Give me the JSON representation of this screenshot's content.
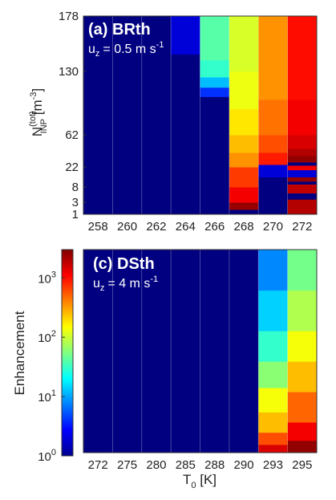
{
  "chart_data": [
    {
      "type": "heatmap",
      "panel_label": "(a) BRth",
      "annotation": {
        "prefix": "u",
        "sub": "z",
        "value": "= 0.5 m s",
        "sup": "-1"
      },
      "xlabel": "",
      "ylabel": {
        "main": "N",
        "sup": "(tot)",
        "sub": "INP",
        "unit": " [m",
        "unit_sup": "-3",
        "unit_close": "]"
      },
      "x_categories": [
        "258",
        "260",
        "262",
        "264",
        "266",
        "268",
        "270",
        "272"
      ],
      "y_ticks": [
        1,
        3,
        8,
        22,
        62,
        130,
        178
      ],
      "y_tick_labels": [
        "1",
        "3",
        "8",
        "22",
        "62",
        "130",
        "178"
      ],
      "ylim": [
        1,
        178
      ],
      "columns": [
        {
          "x": "258",
          "segments": [
            {
              "y0": 1,
              "y1": 178,
              "v": 1
            }
          ]
        },
        {
          "x": "260",
          "segments": [
            {
              "y0": 1,
              "y1": 178,
              "v": 1
            }
          ]
        },
        {
          "x": "262",
          "segments": [
            {
              "y0": 1,
              "y1": 178,
              "v": 1
            }
          ]
        },
        {
          "x": "264",
          "segments": [
            {
              "y0": 1,
              "y1": 145,
              "v": 1
            },
            {
              "y0": 145,
              "y1": 178,
              "v": 2
            }
          ]
        },
        {
          "x": "266",
          "segments": [
            {
              "y0": 1,
              "y1": 103,
              "v": 1
            },
            {
              "y0": 103,
              "y1": 113,
              "v": 4
            },
            {
              "y0": 113,
              "y1": 124,
              "v": 12
            },
            {
              "y0": 124,
              "y1": 140,
              "v": 30
            },
            {
              "y0": 140,
              "y1": 178,
              "v": 40
            }
          ]
        },
        {
          "x": "268",
          "segments": [
            {
              "y0": 1,
              "y1": 1.8,
              "v": 1
            },
            {
              "y0": 1.8,
              "y1": 3,
              "v": 2500
            },
            {
              "y0": 3,
              "y1": 8,
              "v": 1200
            },
            {
              "y0": 8,
              "y1": 22,
              "v": 700
            },
            {
              "y0": 22,
              "y1": 40,
              "v": 350
            },
            {
              "y0": 40,
              "y1": 62,
              "v": 250
            },
            {
              "y0": 62,
              "y1": 90,
              "v": 180
            },
            {
              "y0": 90,
              "y1": 130,
              "v": 130
            },
            {
              "y0": 130,
              "y1": 178,
              "v": 110
            }
          ]
        },
        {
          "x": "270",
          "segments": [
            {
              "y0": 1,
              "y1": 15,
              "v": 1
            },
            {
              "y0": 15,
              "y1": 25,
              "v": 2
            },
            {
              "y0": 25,
              "y1": 40,
              "v": 900
            },
            {
              "y0": 40,
              "y1": 62,
              "v": 600
            },
            {
              "y0": 62,
              "y1": 100,
              "v": 450
            },
            {
              "y0": 100,
              "y1": 178,
              "v": 350
            }
          ]
        },
        {
          "x": "272",
          "segments": [
            {
              "y0": 1,
              "y1": 4,
              "v": 2000
            },
            {
              "y0": 4,
              "y1": 6,
              "v": 1
            },
            {
              "y0": 6,
              "y1": 10,
              "v": 1800
            },
            {
              "y0": 10,
              "y1": 12,
              "v": 1
            },
            {
              "y0": 12,
              "y1": 15,
              "v": 2500
            },
            {
              "y0": 15,
              "y1": 20,
              "v": 2
            },
            {
              "y0": 20,
              "y1": 24,
              "v": 1200
            },
            {
              "y0": 24,
              "y1": 28,
              "v": 1
            },
            {
              "y0": 28,
              "y1": 36,
              "v": 2600
            },
            {
              "y0": 36,
              "y1": 45,
              "v": 2000
            },
            {
              "y0": 45,
              "y1": 62,
              "v": 1500
            },
            {
              "y0": 62,
              "y1": 100,
              "v": 1200
            },
            {
              "y0": 100,
              "y1": 178,
              "v": 1000
            }
          ]
        }
      ]
    },
    {
      "type": "heatmap",
      "panel_label": "(c) DSth",
      "annotation": {
        "prefix": "u",
        "sub": "z",
        "value": "= 4 m s",
        "sup": "-1"
      },
      "xlabel": {
        "main": "T",
        "sub": "0",
        "unit": " [K]"
      },
      "ylabel": "",
      "x_categories": [
        "272",
        "275",
        "280",
        "285",
        "288",
        "290",
        "293",
        "295"
      ],
      "y_range": [
        0,
        1
      ],
      "columns": [
        {
          "x": "272",
          "segments": [
            {
              "y0": 0,
              "y1": 1,
              "v": 1
            }
          ]
        },
        {
          "x": "275",
          "segments": [
            {
              "y0": 0,
              "y1": 1,
              "v": 1
            }
          ]
        },
        {
          "x": "280",
          "segments": [
            {
              "y0": 0,
              "y1": 1,
              "v": 1
            }
          ]
        },
        {
          "x": "285",
          "segments": [
            {
              "y0": 0,
              "y1": 1,
              "v": 1
            }
          ]
        },
        {
          "x": "288",
          "segments": [
            {
              "y0": 0,
              "y1": 1,
              "v": 1
            }
          ]
        },
        {
          "x": "290",
          "segments": [
            {
              "y0": 0,
              "y1": 1,
              "v": 1
            }
          ]
        },
        {
          "x": "293",
          "segments": [
            {
              "y0": 0,
              "y1": 0.04,
              "v": 1500
            },
            {
              "y0": 0.04,
              "y1": 0.1,
              "v": 600
            },
            {
              "y0": 0.1,
              "y1": 0.2,
              "v": 250
            },
            {
              "y0": 0.2,
              "y1": 0.32,
              "v": 140
            },
            {
              "y0": 0.32,
              "y1": 0.45,
              "v": 60
            },
            {
              "y0": 0.45,
              "y1": 0.6,
              "v": 30
            },
            {
              "y0": 0.6,
              "y1": 0.8,
              "v": 14
            },
            {
              "y0": 0.8,
              "y1": 1,
              "v": 8
            }
          ]
        },
        {
          "x": "295",
          "segments": [
            {
              "y0": 0,
              "y1": 0.06,
              "v": 2600
            },
            {
              "y0": 0.06,
              "y1": 0.15,
              "v": 1200
            },
            {
              "y0": 0.15,
              "y1": 0.3,
              "v": 500
            },
            {
              "y0": 0.3,
              "y1": 0.45,
              "v": 250
            },
            {
              "y0": 0.45,
              "y1": 0.6,
              "v": 140
            },
            {
              "y0": 0.6,
              "y1": 0.8,
              "v": 80
            },
            {
              "y0": 0.8,
              "y1": 1,
              "v": 50
            }
          ]
        }
      ]
    }
  ],
  "colorbar": {
    "label": "Enhancement",
    "scale": "log",
    "range": [
      1,
      3000
    ],
    "ticks": [
      1,
      10,
      100,
      1000
    ],
    "tick_labels": [
      {
        "base": "10",
        "exp": "0"
      },
      {
        "base": "10",
        "exp": "1"
      },
      {
        "base": "10",
        "exp": "2"
      },
      {
        "base": "10",
        "exp": "3"
      }
    ],
    "colormap": "jet"
  }
}
